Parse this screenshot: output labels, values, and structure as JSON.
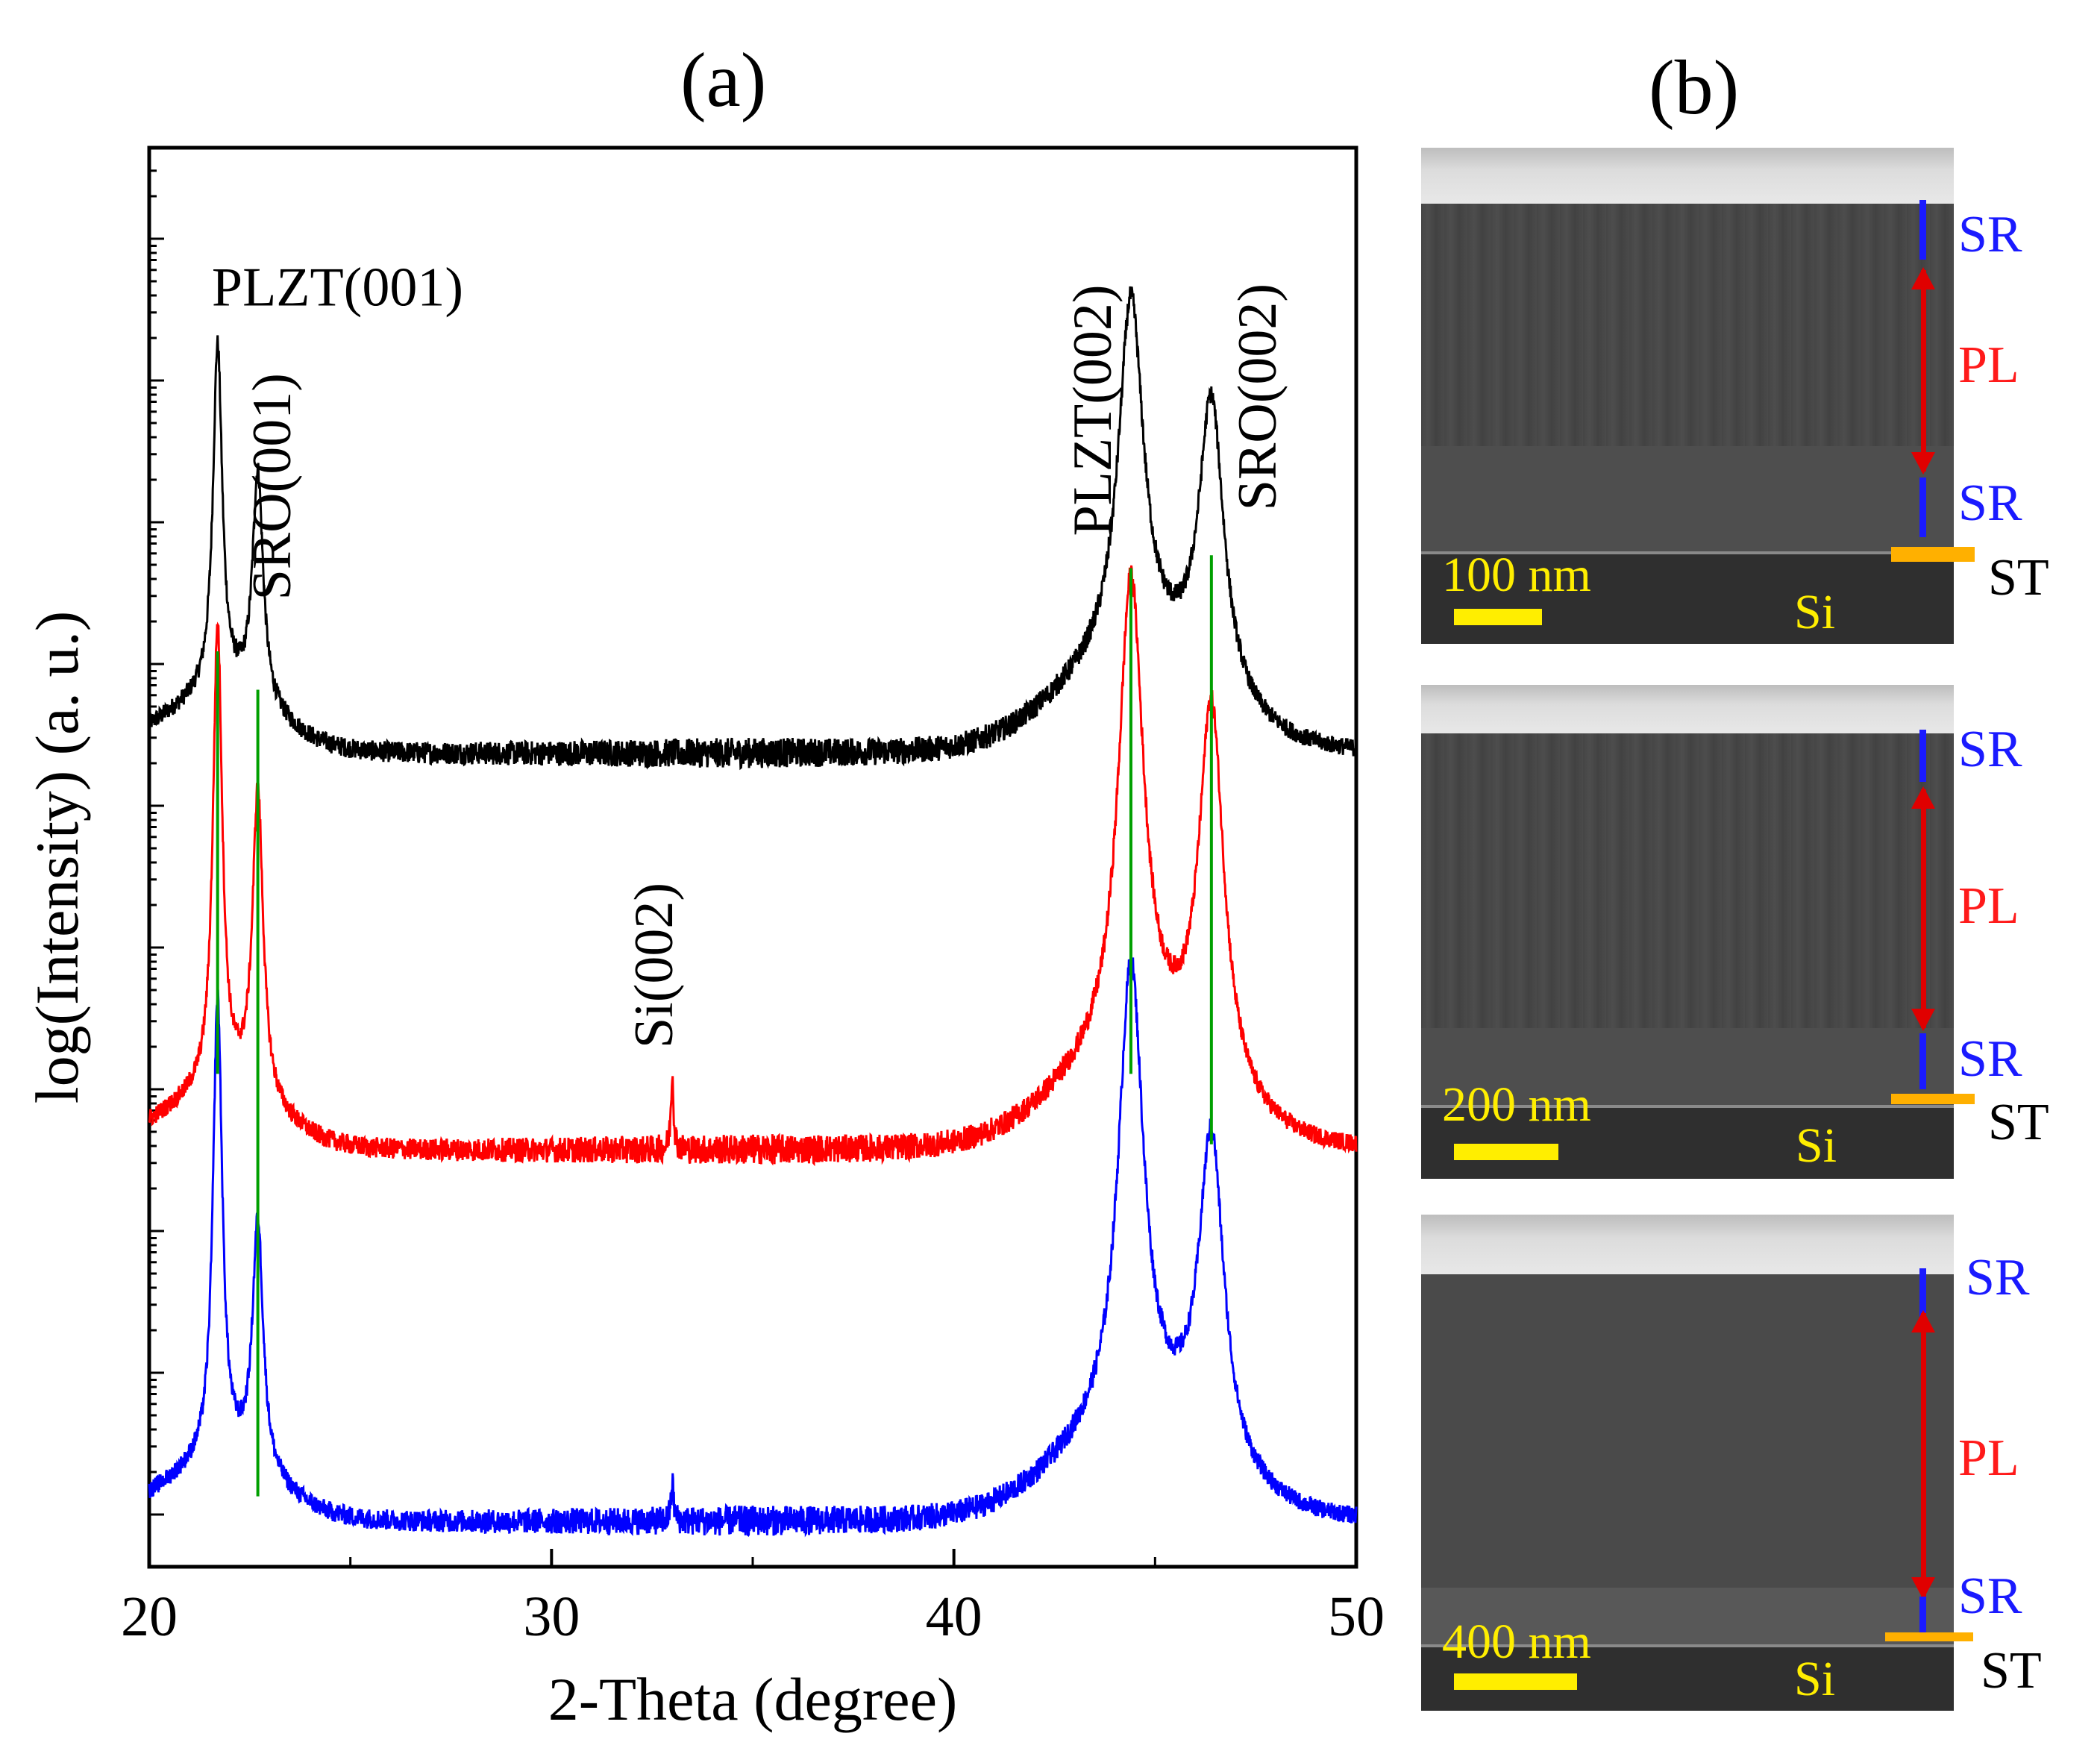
{
  "panel_a_label": "(a)",
  "panel_b_label": "(b)",
  "chart_data": {
    "type": "line",
    "title": "(a)",
    "xlabel": "2-Theta (degree)",
    "ylabel": "log(Intensity) (a. u.)",
    "xlim": [
      20,
      50
    ],
    "ylim": [
      0,
      10.5
    ],
    "xticks": [
      "20",
      "30",
      "40",
      "50"
    ],
    "colors": {
      "black": "#000000",
      "red": "#ff0000",
      "blue": "#0000ff",
      "guide": "#00a000"
    },
    "series": [
      {
        "name": "black",
        "color": "#000000",
        "base": 6.0,
        "peaks": [
          [
            21.7,
            2.7,
            0.14
          ],
          [
            22.7,
            1.8,
            0.16
          ],
          [
            44.4,
            2.8,
            0.38
          ],
          [
            46.4,
            2.3,
            0.38
          ]
        ],
        "points": [
          [
            20.0,
            6.2
          ],
          [
            21.0,
            6.25
          ],
          [
            21.7,
            8.7
          ],
          [
            22.2,
            6.9
          ],
          [
            22.7,
            7.8
          ],
          [
            23.3,
            6.5
          ],
          [
            25.0,
            6.05
          ],
          [
            30.0,
            6.0
          ],
          [
            34.5,
            6.05
          ],
          [
            40.0,
            6.05
          ],
          [
            42.8,
            6.3
          ],
          [
            43.3,
            6.6
          ],
          [
            44.4,
            8.8
          ],
          [
            45.4,
            6.9
          ],
          [
            46.4,
            8.3
          ],
          [
            47.5,
            6.4
          ],
          [
            50.0,
            6.05
          ]
        ]
      },
      {
        "name": "red",
        "color": "#ff0000",
        "base": 2.9,
        "peaks": [
          [
            21.7,
            3.6,
            0.14
          ],
          [
            22.7,
            2.4,
            0.16
          ],
          [
            33.0,
            0.6,
            0.04
          ],
          [
            44.4,
            3.7,
            0.38
          ],
          [
            46.4,
            3.0,
            0.38
          ]
        ],
        "points": [
          [
            20.0,
            3.1
          ],
          [
            21.0,
            3.25
          ],
          [
            21.7,
            6.5
          ],
          [
            22.2,
            4.0
          ],
          [
            22.7,
            5.3
          ],
          [
            23.3,
            3.7
          ],
          [
            25.0,
            3.0
          ],
          [
            30.0,
            2.9
          ],
          [
            33.0,
            3.4
          ],
          [
            40.0,
            3.0
          ],
          [
            42.8,
            3.4
          ],
          [
            43.3,
            3.8
          ],
          [
            44.4,
            6.6
          ],
          [
            45.4,
            4.3
          ],
          [
            46.4,
            5.9
          ],
          [
            47.5,
            3.6
          ],
          [
            50.0,
            3.0
          ]
        ]
      },
      {
        "name": "blue",
        "color": "#0000ff",
        "base": 0.0,
        "peaks": [
          [
            21.7,
            3.6,
            0.14
          ],
          [
            22.7,
            1.95,
            0.16
          ],
          [
            33.0,
            0.3,
            0.04
          ],
          [
            44.4,
            3.6,
            0.38
          ],
          [
            46.4,
            2.55,
            0.38
          ]
        ],
        "points": [
          [
            20.0,
            0.2
          ],
          [
            21.0,
            0.4
          ],
          [
            21.7,
            3.6
          ],
          [
            22.2,
            0.9
          ],
          [
            22.7,
            2.1
          ],
          [
            23.3,
            0.6
          ],
          [
            25.0,
            0.1
          ],
          [
            30.0,
            0.0
          ],
          [
            33.0,
            0.3
          ],
          [
            40.0,
            0.05
          ],
          [
            42.8,
            0.5
          ],
          [
            43.3,
            0.9
          ],
          [
            44.4,
            3.6
          ],
          [
            45.4,
            1.1
          ],
          [
            46.4,
            2.55
          ],
          [
            47.5,
            0.5
          ],
          [
            50.0,
            0.0
          ]
        ]
      }
    ],
    "guide_lines": [
      {
        "x": 21.7,
        "y_from": 6.8,
        "y_to": 3.5
      },
      {
        "x": 22.7,
        "y_from": 6.5,
        "y_to": 0.2
      },
      {
        "x": 44.4,
        "y_from": 7.45,
        "y_to": 3.5
      },
      {
        "x": 46.4,
        "y_from": 7.55,
        "y_to": 2.95
      }
    ],
    "annotations": [
      {
        "text": "PLZT(001)",
        "x": 21.0,
        "y": 9.5,
        "rotate": false
      },
      {
        "text": "SRO(001)",
        "x": 23.5,
        "y": 7.2,
        "rotate": true
      },
      {
        "text": "Si(002)",
        "x": 33.0,
        "y": 3.7,
        "rotate": true
      },
      {
        "text": "PLZT(002)",
        "x": 43.9,
        "y": 7.7,
        "rotate": true
      },
      {
        "text": "SRO(002)",
        "x": 48.0,
        "y": 7.9,
        "rotate": true
      }
    ]
  },
  "sem_panels": [
    {
      "scale_label": "100 nm",
      "si_label": "Si",
      "sr_top": "SR",
      "pl": "PL",
      "sr_bottom": "SR",
      "st": "ST"
    },
    {
      "scale_label": "200 nm",
      "si_label": "Si",
      "sr_top": "SR",
      "pl": "PL",
      "sr_bottom": "SR",
      "st": "ST"
    },
    {
      "scale_label": "400 nm",
      "si_label": "Si",
      "sr_top": "SR",
      "pl": "PL",
      "sr_bottom": "SR",
      "st": "ST"
    }
  ]
}
